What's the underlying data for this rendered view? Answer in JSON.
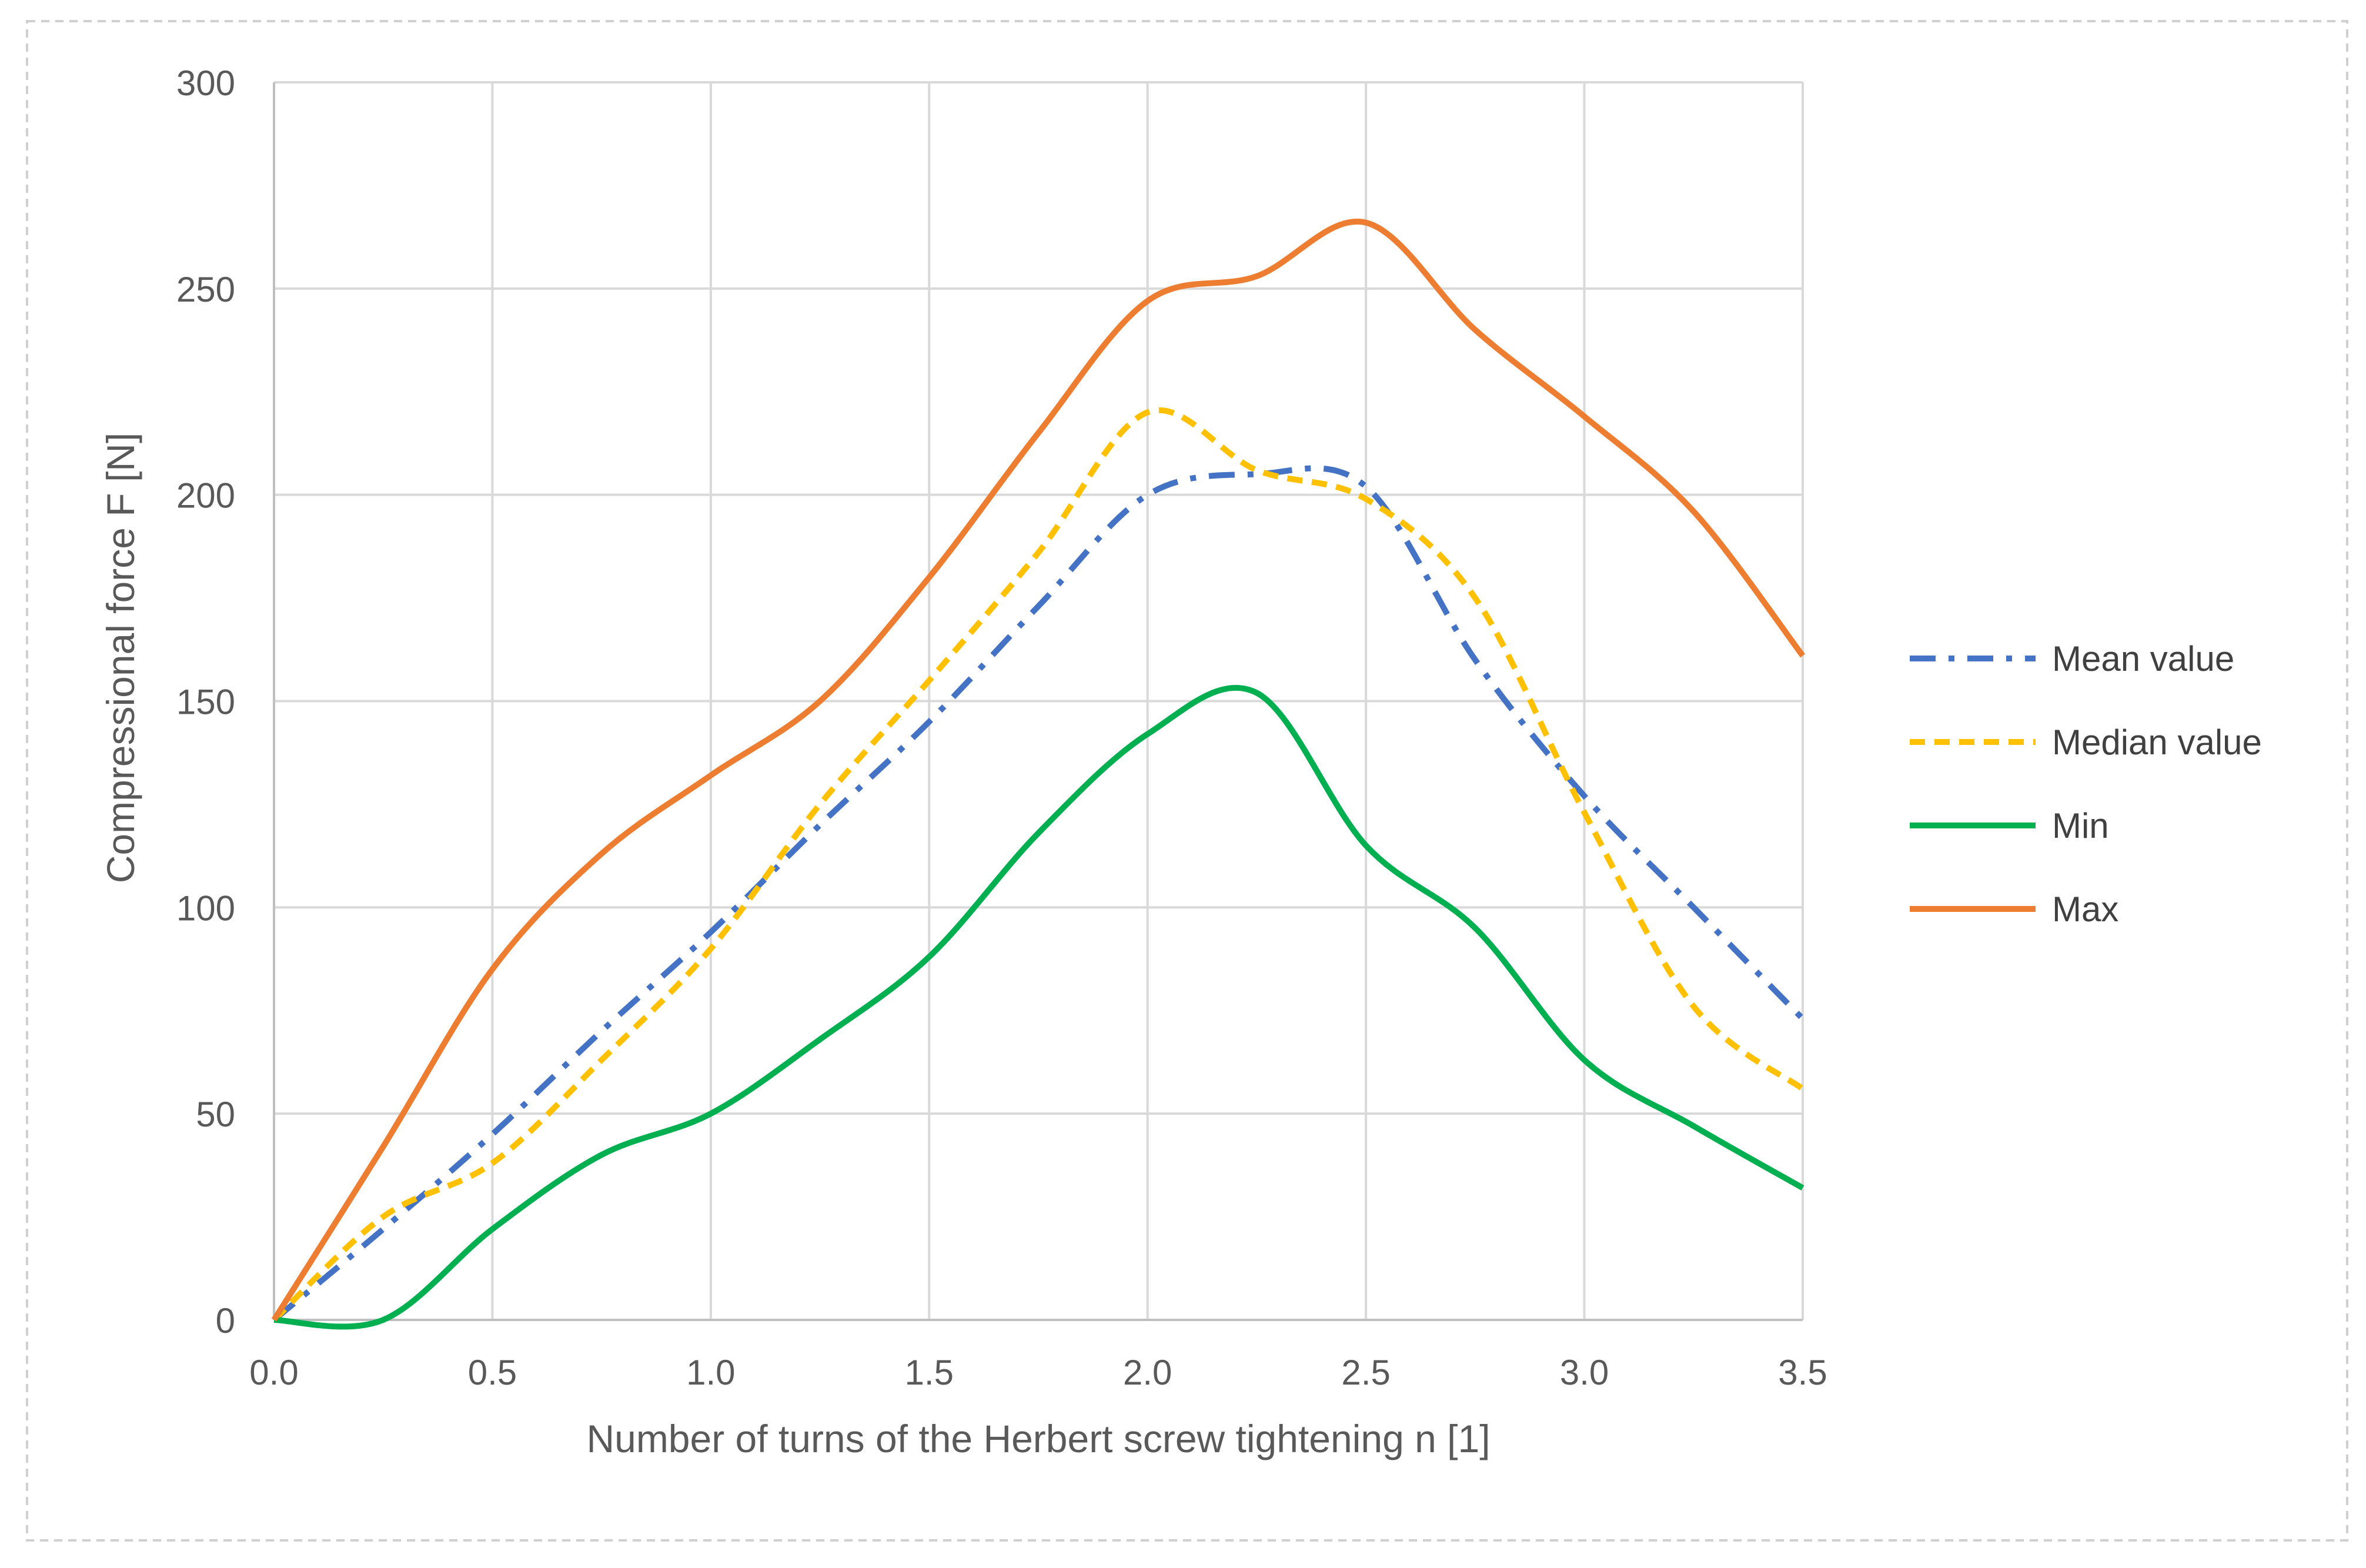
{
  "chart_data": {
    "type": "line",
    "title": "",
    "xlabel": "Number of turns of the Herbert screw tightening n [1]",
    "ylabel": "Compressional force F [N]",
    "xlim": [
      0,
      3.5
    ],
    "ylim": [
      0,
      300
    ],
    "x_ticks": [
      "0.0",
      "0.5",
      "1.0",
      "1.5",
      "2.0",
      "2.5",
      "3.0",
      "3.5"
    ],
    "y_ticks": [
      "0",
      "50",
      "100",
      "150",
      "200",
      "250",
      "300"
    ],
    "grid": true,
    "legend_position": "right",
    "x": [
      0.0,
      0.25,
      0.5,
      0.75,
      1.0,
      1.25,
      1.5,
      1.75,
      2.0,
      2.25,
      2.5,
      2.75,
      3.0,
      3.25,
      3.5
    ],
    "series": [
      {
        "name": "Mean value",
        "color": "#4472C4",
        "style": "dashdot",
        "values": [
          0,
          22,
          45,
          70,
          94,
          120,
          145,
          173,
          200,
          205,
          202,
          160,
          127,
          100,
          73
        ]
      },
      {
        "name": "Median value",
        "color": "#FFC000",
        "style": "dashed",
        "values": [
          0,
          25,
          38,
          63,
          90,
          125,
          155,
          186,
          220,
          206,
          199,
          175,
          123,
          76,
          56
        ]
      },
      {
        "name": "Min",
        "color": "#00B050",
        "style": "solid",
        "values": [
          0,
          0,
          22,
          40,
          50,
          68,
          88,
          118,
          142,
          152,
          115,
          95,
          63,
          47,
          32
        ]
      },
      {
        "name": "Max",
        "color": "#ED7D31",
        "style": "solid",
        "values": [
          0,
          42,
          85,
          113,
          132,
          150,
          180,
          215,
          247,
          253,
          266,
          240,
          219,
          196,
          161
        ]
      }
    ]
  }
}
